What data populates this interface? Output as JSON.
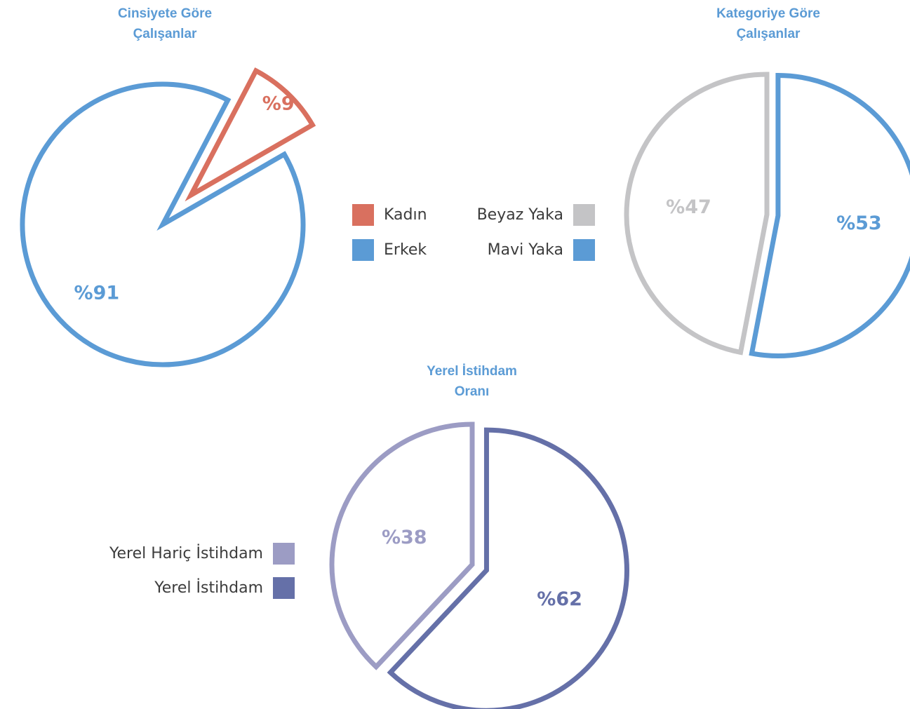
{
  "chart_data": [
    {
      "type": "pie",
      "title": "Cinsiyete Göre\nÇalışanlar",
      "title_color": "#5b9bd5",
      "legend_placement": "right",
      "slices": [
        {
          "label": "Kadın",
          "value": 9,
          "display": "%9",
          "color": "#d9705f",
          "exploded": true
        },
        {
          "label": "Erkek",
          "value": 91,
          "display": "%91",
          "color": "#5b9bd5",
          "exploded": false
        }
      ]
    },
    {
      "type": "pie",
      "title": "Kategoriye Göre\nÇalışanlar",
      "title_color": "#5b9bd5",
      "legend_placement": "left",
      "slices": [
        {
          "label": "Mavi Yaka",
          "value": 53,
          "display": "%53",
          "color": "#5b9bd5",
          "exploded": true
        },
        {
          "label": "Beyaz Yaka",
          "value": 47,
          "display": "%47",
          "color": "#c4c4c6",
          "exploded": false
        }
      ]
    },
    {
      "type": "pie",
      "title": "Yerel İstihdam\nOranı",
      "title_color": "#5b9bd5",
      "legend_placement": "left",
      "slices": [
        {
          "label": "Yerel İstihdam",
          "value": 62,
          "display": "%62",
          "color": "#6570a8",
          "exploded": true
        },
        {
          "label": "Yerel Hariç İstihdam",
          "value": 38,
          "display": "%38",
          "color": "#9c9cc4",
          "exploded": false
        }
      ]
    }
  ]
}
